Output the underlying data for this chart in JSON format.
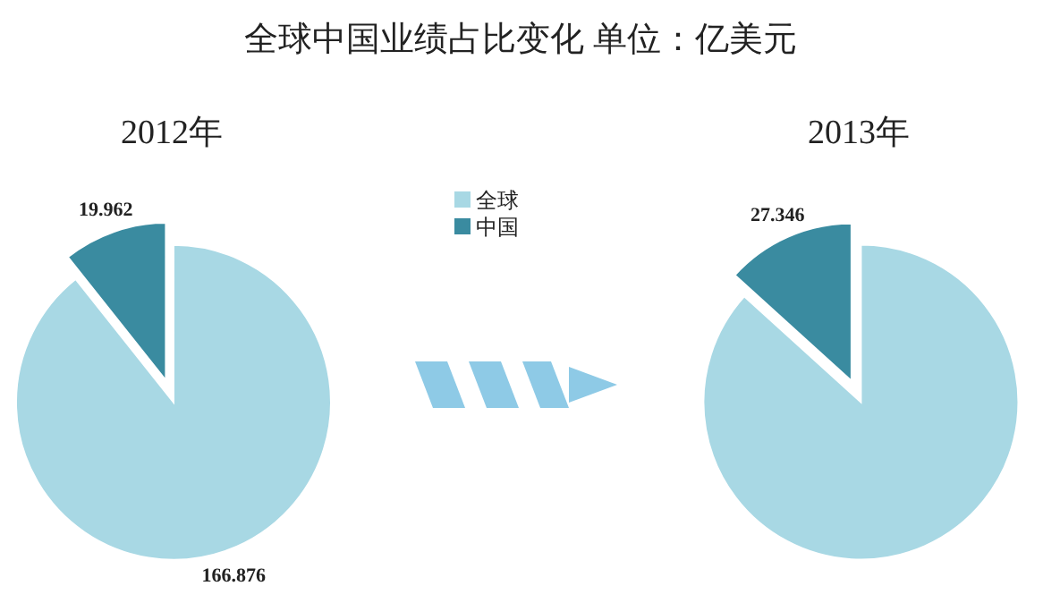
{
  "chart_data": {
    "type": "pie",
    "title": "全球中国业绩占比变化  单位：亿美元",
    "categories": [
      "全球",
      "中国"
    ],
    "colors": [
      "#a8d8e4",
      "#3a8ba0"
    ],
    "legend": "top",
    "series": [
      {
        "name": "2012年",
        "values": [
          166.876,
          19.962
        ],
        "value_labels": [
          "166.876",
          "19.962"
        ]
      },
      {
        "name": "2013年",
        "values": [
          178.5,
          27.346
        ],
        "value_labels": [
          null,
          "27.346"
        ]
      }
    ]
  }
}
